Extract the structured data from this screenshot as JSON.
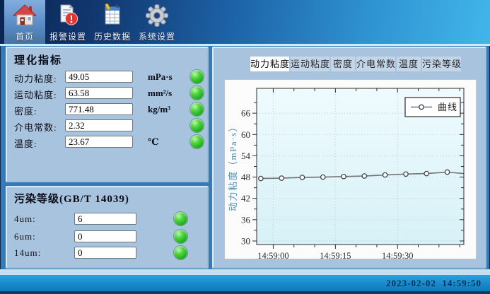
{
  "colors": {
    "toolbar_dark": "#0b2450",
    "toolbar_light": "#41b6ea",
    "selected_tool_bg": "#5b8cc8",
    "main_bg": "#3579b8",
    "panel_bg": "#a7c3dd",
    "led_green": "#1cab1c",
    "status_bar_bg": "#1787c9",
    "tab_selected_bg": "#ffffff",
    "tab_bg": "#c4d6e6",
    "chart_plot_bg": "#e2f6fa",
    "chart_line": "#6f7578",
    "chart_grid": "#a8cfd9",
    "chart_ylabel_color": "#4f93b4"
  },
  "toolbar": {
    "items": [
      {
        "label": "首页",
        "icon": "home-icon",
        "selected": true
      },
      {
        "label": "报警设置",
        "icon": "alarm-settings-icon",
        "selected": false
      },
      {
        "label": "历史数据",
        "icon": "history-data-icon",
        "selected": false
      },
      {
        "label": "系统设置",
        "icon": "system-settings-icon",
        "selected": false
      }
    ]
  },
  "indicators_panel": {
    "title": "理化指标",
    "rows": [
      {
        "label": "动力粘度:",
        "value": "49.05",
        "unit": "mPa·s",
        "status": "green"
      },
      {
        "label": "运动粘度:",
        "value": "63.58",
        "unit": "mm²/s",
        "status": "green"
      },
      {
        "label": "密度:",
        "value": "771.48",
        "unit": "kg/m³",
        "status": "green"
      },
      {
        "label": "介电常数:",
        "value": "2.32",
        "unit": "",
        "status": "green"
      },
      {
        "label": "温度:",
        "value": "23.67",
        "unit": "℃",
        "status": "green"
      }
    ]
  },
  "contamination_panel": {
    "title": "污染等级(GB/T 14039)",
    "rows": [
      {
        "label": "4um:",
        "value": "6",
        "status": "green"
      },
      {
        "label": "6um:",
        "value": "0",
        "status": "green"
      },
      {
        "label": "14um:",
        "value": "0",
        "status": "green"
      }
    ]
  },
  "chart_tabs": [
    {
      "label": "动力粘度",
      "selected": true
    },
    {
      "label": "运动粘度",
      "selected": false
    },
    {
      "label": "密度",
      "selected": false
    },
    {
      "label": "介电常数",
      "selected": false
    },
    {
      "label": "温度",
      "selected": false
    },
    {
      "label": "污染等级",
      "selected": false
    }
  ],
  "chart_data": {
    "type": "line",
    "title": "",
    "xlabel": "",
    "ylabel": "动力粘度（mPa·s）",
    "legend": [
      "曲线"
    ],
    "legend_position": "top-right",
    "grid": "dotted",
    "x_range_s": [
      0,
      50
    ],
    "x_major_ticks": [
      {
        "s": 4,
        "label": "14:59:00"
      },
      {
        "s": 19,
        "label": "14:59:15"
      },
      {
        "s": 34,
        "label": "14:59:30"
      }
    ],
    "x_minor_step_s": 5,
    "y_axis": {
      "range": [
        29,
        73
      ],
      "major_ticks": [
        30,
        36,
        42,
        48,
        54,
        60,
        66
      ],
      "minor_step": 3
    },
    "series": [
      {
        "name": "曲线",
        "x_s": [
          1,
          6,
          11,
          16,
          21,
          26,
          31,
          36,
          41,
          46
        ],
        "values": [
          47.6,
          47.7,
          47.9,
          48.0,
          48.15,
          48.3,
          48.6,
          48.85,
          49.0,
          49.4
        ],
        "trailing_point": {
          "x_s": 50,
          "value": 49.0
        }
      }
    ]
  },
  "status_bar": {
    "datetime": "2023-02-02  14:59:50"
  }
}
